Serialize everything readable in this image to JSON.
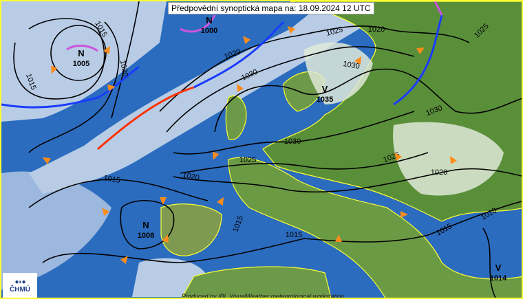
{
  "title": "Předpovědní synoptická mapa na: 18.09.2024 12 UTC",
  "logo": {
    "text": "ČHMÚ"
  },
  "credit": "Produced by IBL VisualWeather meteorological workstation",
  "pressure_centers": [
    {
      "type": "N",
      "value": "1005"
    },
    {
      "type": "N",
      "value": "1000"
    },
    {
      "type": "V",
      "value": "1035"
    },
    {
      "type": "N",
      "value": "1008"
    },
    {
      "type": "V",
      "value": "1014"
    }
  ],
  "isobar_labels": [
    "1015",
    "1015",
    "1020",
    "1020",
    "1025",
    "1020",
    "1030",
    "1030",
    "1025",
    "1030",
    "1030",
    "1025",
    "1025",
    "1020",
    "1015",
    "1020",
    "1015",
    "1015",
    "1015",
    "1010"
  ],
  "colors": {
    "sea": "#2b6cbf",
    "land": "#4f8a2e",
    "cloud": "#c8d6e8",
    "border": "#ffff33",
    "cold_front": "#1a3cff",
    "warm_front": "#ff3300",
    "occlusion": "#cc55dd",
    "wind_arrow": "#ff8c1a"
  }
}
